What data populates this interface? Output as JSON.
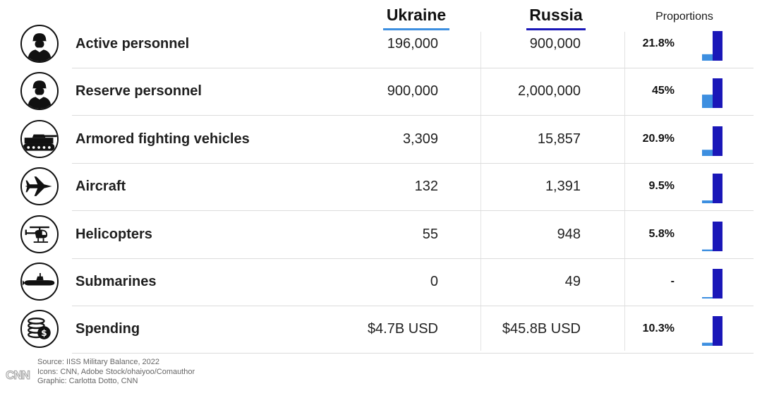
{
  "headers": {
    "ukraine": "Ukraine",
    "russia": "Russia",
    "proportions": "Proportions"
  },
  "colors": {
    "ukraine": "#3d8fe0",
    "russia": "#1a17b8"
  },
  "chart_data": {
    "type": "table",
    "columns": [
      "Ukraine",
      "Russia",
      "Proportions"
    ],
    "rows": [
      {
        "label": "Active personnel",
        "ukraine": "196,000",
        "russia": "900,000",
        "proportion": "21.8%",
        "proportion_value": 0.218,
        "icon": "soldier-icon"
      },
      {
        "label": "Reserve personnel",
        "ukraine": "900,000",
        "russia": "2,000,000",
        "proportion": "45%",
        "proportion_value": 0.45,
        "icon": "soldier-icon"
      },
      {
        "label": "Armored fighting vehicles",
        "ukraine": "3,309",
        "russia": "15,857",
        "proportion": "20.9%",
        "proportion_value": 0.209,
        "icon": "tank-icon"
      },
      {
        "label": "Aircraft",
        "ukraine": "132",
        "russia": "1,391",
        "proportion": "9.5%",
        "proportion_value": 0.095,
        "icon": "fighter-jet-icon"
      },
      {
        "label": "Helicopters",
        "ukraine": "55",
        "russia": "948",
        "proportion": "5.8%",
        "proportion_value": 0.058,
        "icon": "helicopter-icon"
      },
      {
        "label": "Submarines",
        "ukraine": "0",
        "russia": "49",
        "proportion": "-",
        "proportion_value": 0,
        "icon": "submarine-icon"
      },
      {
        "label": "Spending",
        "ukraine": "$4.7B USD",
        "russia": "$45.8B USD",
        "proportion": "10.3%",
        "proportion_value": 0.103,
        "icon": "money-coins-icon"
      }
    ]
  },
  "footer": {
    "source": "Source:  IISS Military Balance, 2022",
    "icons": "Icons: CNN, Adobe Stock/ohaiyoo/Comauthor",
    "graphic": "Graphic: Carlotta Dotto, CNN",
    "logo": "CNN"
  }
}
